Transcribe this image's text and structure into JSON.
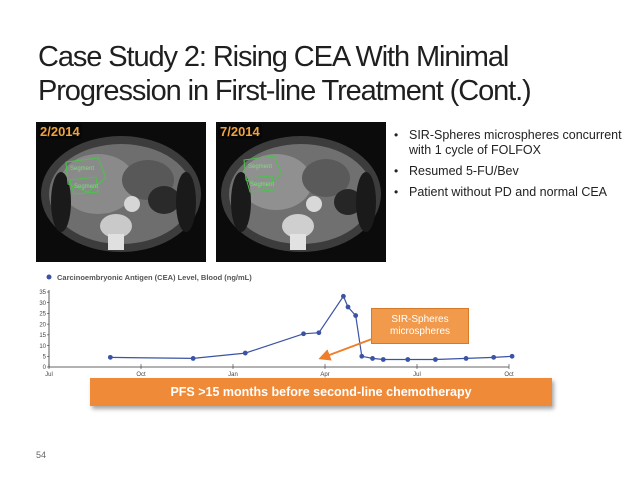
{
  "slide": {
    "title_line1": "Case Study 2: Rising CEA With Minimal",
    "title_line2": "Progression in First-line Treatment (Cont.)",
    "page_number": "54"
  },
  "scans": [
    {
      "label": "2/2014",
      "overlay_text": "Segment",
      "overlay_text2": "Segment"
    },
    {
      "label": "7/2014",
      "overlay_text": "Segment",
      "overlay_text2": "Segment"
    }
  ],
  "bullets": [
    "SIR-Spheres microspheres concurrent  with 1 cycle of FOLFOX",
    "Resumed 5-FU/Bev",
    "Patient without PD and normal CEA"
  ],
  "colors": {
    "accent_orange": "#ef8a39",
    "note_orange": "#f29a4c",
    "series_blue": "#3a53a4",
    "arrow_orange": "#f07d2a",
    "scan_label": "#f0a23c"
  },
  "chart_data": {
    "type": "line",
    "title": "Carcinoembryonic Antigen (CEA) Level, Blood (ng/mL)",
    "legend_marker": "circle",
    "xlabel": "",
    "ylabel": "",
    "x_ticks": [
      "Jul",
      "Oct",
      "Jan",
      "Apr",
      "Jul",
      "Oct"
    ],
    "x_tick_positions": [
      0,
      3,
      6,
      9,
      12,
      15
    ],
    "ylim": [
      0,
      35
    ],
    "y_ticks": [
      0,
      5,
      10,
      15,
      20,
      25,
      30,
      35
    ],
    "grid": false,
    "series": [
      {
        "name": "",
        "x": [
          2.0,
          4.7,
          6.4,
          8.3,
          8.8,
          9.6,
          9.75,
          10.0,
          10.2,
          10.55,
          10.9,
          11.7,
          12.6,
          13.6,
          14.5,
          15.1
        ],
        "y": [
          4.5,
          4.0,
          6.5,
          15.5,
          16.0,
          33.0,
          28.0,
          24.0,
          5.0,
          4.0,
          3.5,
          3.5,
          3.5,
          4.0,
          4.5,
          5.0
        ]
      }
    ]
  },
  "annotation": {
    "text_line1": "SIR-Spheres",
    "text_line2": "microspheres"
  },
  "pfs_banner": "PFS >15 months before second-line chemotherapy"
}
